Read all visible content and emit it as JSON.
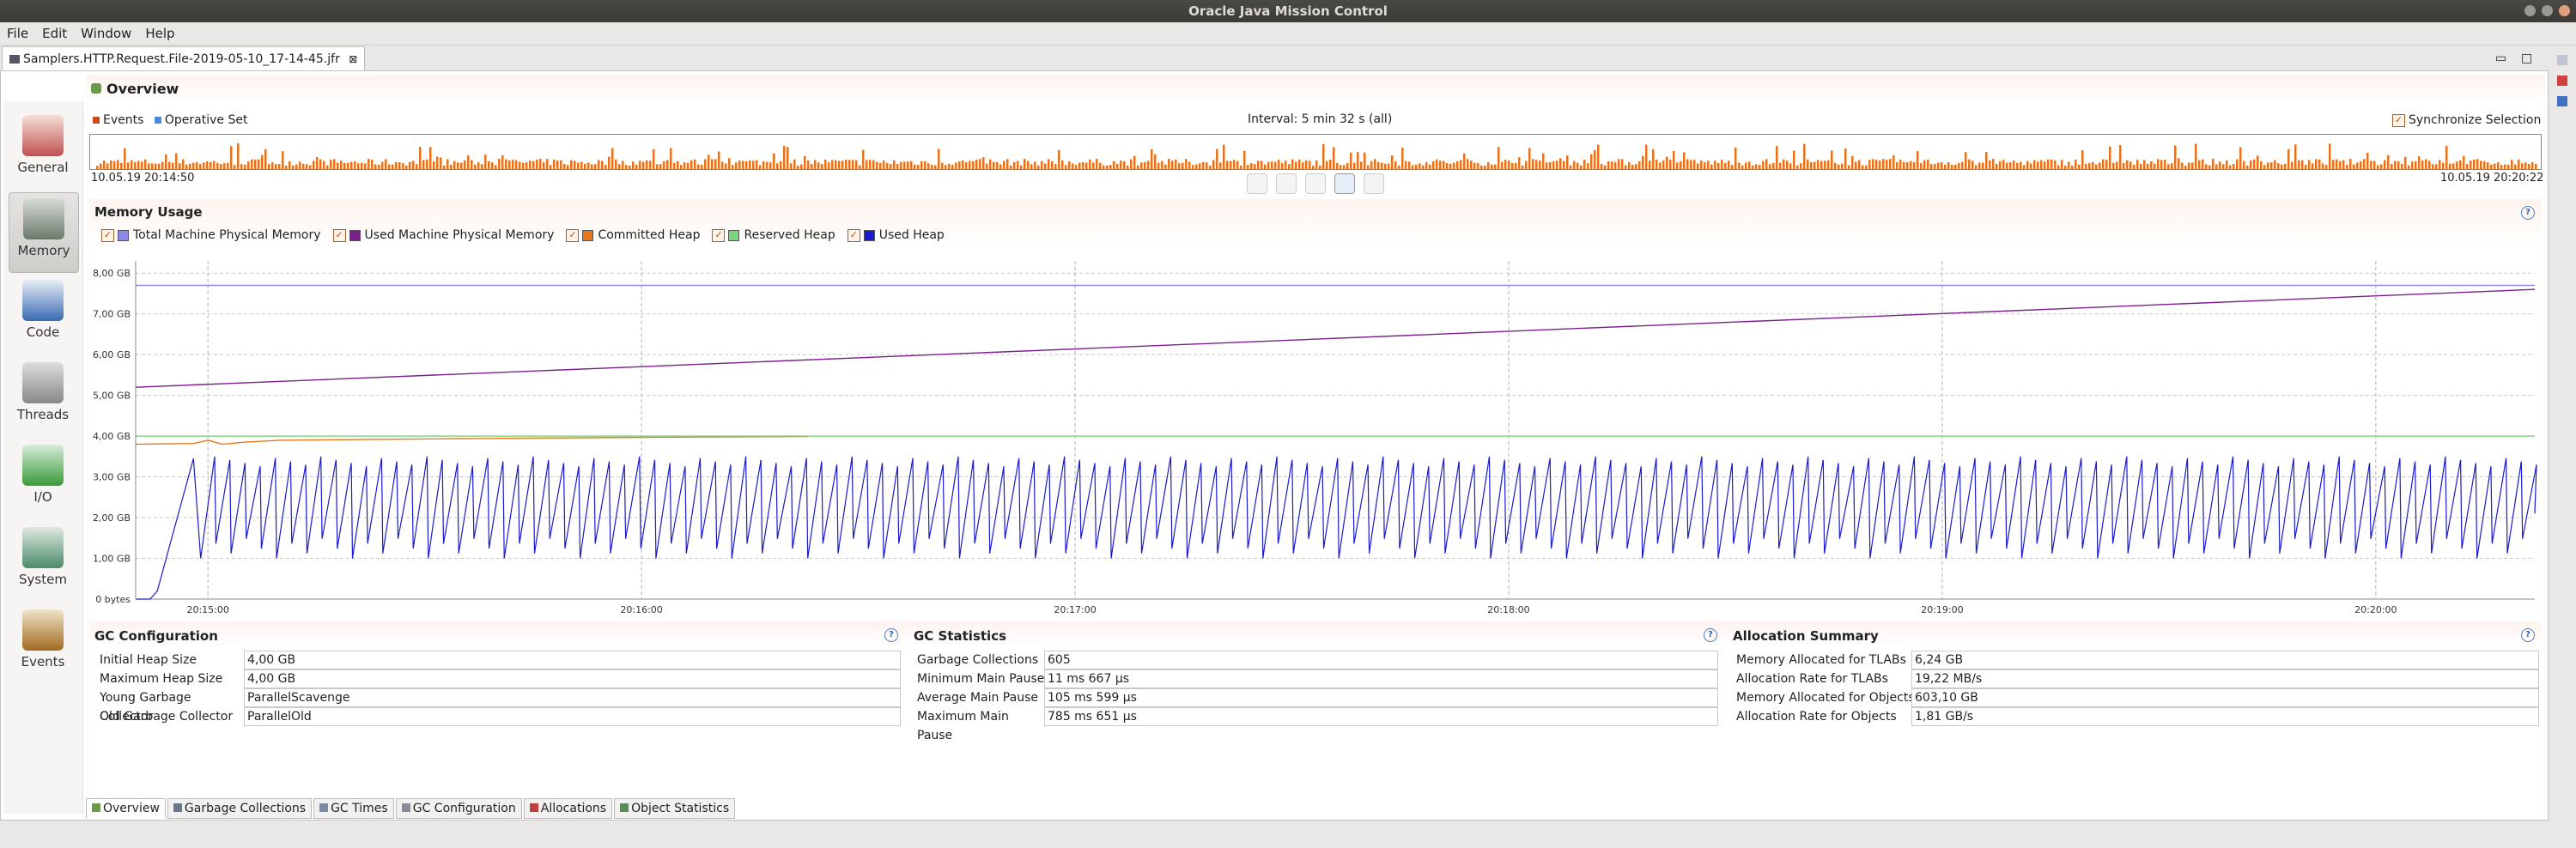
{
  "window": {
    "title": "Oracle Java Mission Control"
  },
  "menu": [
    "File",
    "Edit",
    "Window",
    "Help"
  ],
  "editor_tab": {
    "label": "Samplers.HTTP.Request.File-2019-05-10_17-14-45.jfr"
  },
  "page": {
    "title": "Overview"
  },
  "left_nav": {
    "items": [
      {
        "label": "General",
        "icon": "gauge-icon"
      },
      {
        "label": "Memory",
        "icon": "memory-icon"
      },
      {
        "label": "Code",
        "icon": "code-icon"
      },
      {
        "label": "Threads",
        "icon": "threads-icon"
      },
      {
        "label": "I/O",
        "icon": "io-icon"
      },
      {
        "label": "System",
        "icon": "system-icon"
      },
      {
        "label": "Events",
        "icon": "events-icon"
      }
    ],
    "selected": "Memory"
  },
  "timeline": {
    "legend_events": "Events",
    "legend_operative": "Operative Set",
    "interval": "Interval: 5 min 32 s (all)",
    "sync_label": "Synchronize Selection",
    "start": "10.05.19 20:14:50",
    "end": "10.05.19 20:20:22",
    "events_color": "#e8711a",
    "operative_color": "#4a8ad8"
  },
  "memory_usage": {
    "title": "Memory Usage",
    "legend": [
      {
        "label": "Total Machine Physical Memory",
        "color": "#8a8ae8"
      },
      {
        "label": "Used Machine Physical Memory",
        "color": "#7b1f8c"
      },
      {
        "label": "Committed Heap",
        "color": "#e8781a"
      },
      {
        "label": "Reserved Heap",
        "color": "#7ad47a"
      },
      {
        "label": "Used Heap",
        "color": "#1a1ad0"
      }
    ]
  },
  "chart_data": {
    "type": "line",
    "title": "Memory Usage",
    "xlabel": "",
    "ylabel": "",
    "x_ticks": [
      "20:15:00",
      "20:16:00",
      "20:17:00",
      "20:18:00",
      "20:19:00",
      "20:20:00"
    ],
    "y_ticks": [
      "0 bytes",
      "1,00 GB",
      "2,00 GB",
      "3,00 GB",
      "4,00 GB",
      "5,00 GB",
      "6,00 GB",
      "7,00 GB",
      "8,00 GB"
    ],
    "ylim": [
      0,
      8.3
    ],
    "x_range_seconds": [
      0,
      332
    ],
    "series": [
      {
        "name": "Total Machine Physical Memory",
        "points": [
          [
            0,
            7.7
          ],
          [
            332,
            7.7
          ]
        ]
      },
      {
        "name": "Used Machine Physical Memory",
        "points": [
          [
            0,
            5.2
          ],
          [
            332,
            7.6
          ]
        ]
      },
      {
        "name": "Committed Heap",
        "points": [
          [
            0,
            3.8
          ],
          [
            8,
            3.82
          ],
          [
            10,
            3.9
          ],
          [
            12,
            3.8
          ],
          [
            15,
            3.85
          ],
          [
            20,
            3.9
          ],
          [
            40,
            3.93
          ],
          [
            70,
            3.97
          ],
          [
            93,
            3.99
          ]
        ]
      },
      {
        "name": "Reserved Heap",
        "points": [
          [
            0,
            4.0
          ],
          [
            332,
            4.0
          ]
        ]
      },
      {
        "name": "Used Heap",
        "sawtooth": {
          "start": 0,
          "end": 332,
          "min": 1.0,
          "max": 3.5,
          "period_seconds": 2.1,
          "ramp_start_seconds": 3
        }
      }
    ]
  },
  "gc_config": {
    "title": "GC Configuration",
    "rows": [
      {
        "key": "Initial Heap Size",
        "value": "4,00 GB"
      },
      {
        "key": "Maximum Heap Size",
        "value": "4,00 GB"
      },
      {
        "key": "Young Garbage Collector",
        "value": "ParallelScavenge"
      },
      {
        "key": "Old Garbage Collector",
        "value": "ParallelOld"
      }
    ]
  },
  "gc_stats": {
    "title": "GC Statistics",
    "rows": [
      {
        "key": "Garbage Collections",
        "value": "605"
      },
      {
        "key": "Minimum Main Pause",
        "value": "11 ms 667 µs"
      },
      {
        "key": "Average Main Pause",
        "value": "105 ms 599 µs"
      },
      {
        "key": "Maximum Main Pause",
        "value": "785 ms 651 µs"
      }
    ]
  },
  "alloc_summary": {
    "title": "Allocation Summary",
    "rows": [
      {
        "key": "Memory Allocated for TLABs",
        "value": "6,24 GB"
      },
      {
        "key": "Allocation Rate for TLABs",
        "value": "19,22 MB/s"
      },
      {
        "key": "Memory Allocated for Objects",
        "value": "603,10 GB"
      },
      {
        "key": "Allocation Rate for Objects",
        "value": "1,81 GB/s"
      }
    ]
  },
  "bottom_tabs": [
    "Overview",
    "Garbage Collections",
    "GC Times",
    "GC Configuration",
    "Allocations",
    "Object Statistics"
  ],
  "help_glyph": "?",
  "check_glyph": "✓"
}
